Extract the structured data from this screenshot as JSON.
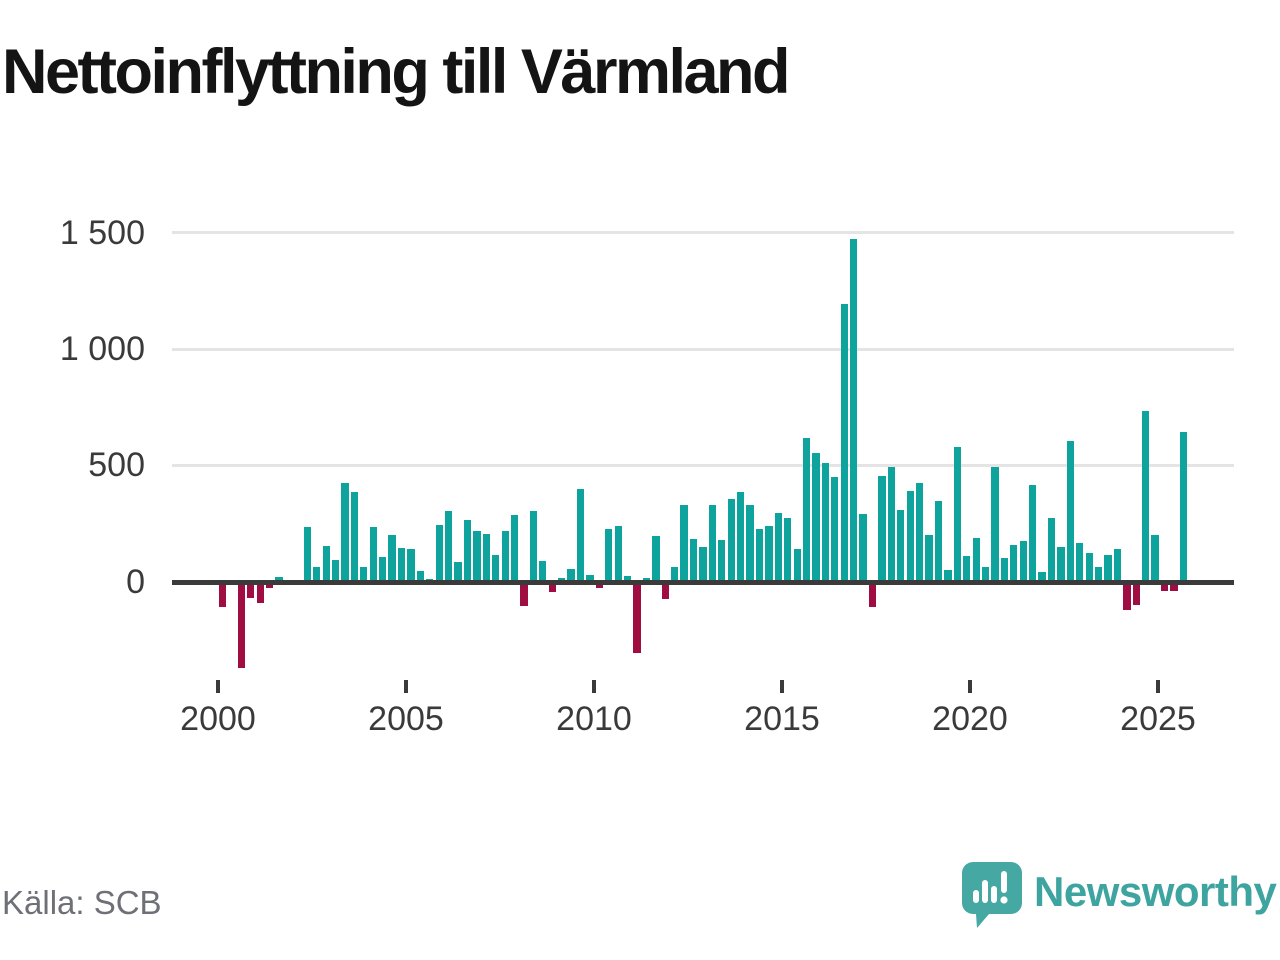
{
  "title": "Nettoinflyttning till Värmland",
  "source": "Källa: SCB",
  "branding": {
    "logo_text": "Newsworthy",
    "logo_icon": "bar-chart-speech-bubble-icon"
  },
  "colors": {
    "positive": "#0fa39e",
    "negative": "#9f0d43",
    "axis": "#3a3a3a",
    "grid": "#e4e4e4",
    "tick_label": "#3a3a3a",
    "source_text": "#6f6f78",
    "brand_teal": "#3da49f",
    "title_text": "#141414"
  },
  "chart_data": {
    "type": "bar",
    "title": "Nettoinflyttning till Värmland",
    "xlabel": "",
    "ylabel": "",
    "ylim": [
      -400,
      1500
    ],
    "grid": true,
    "legend": false,
    "ytick_values": [
      0,
      500,
      1000,
      1500
    ],
    "ytick_labels": [
      "0",
      "500",
      "1 000",
      "1 500"
    ],
    "xtick_years": [
      "2000",
      "2005",
      "2010",
      "2015",
      "2020",
      "2025"
    ],
    "categories": [
      "2000 Q1",
      "2000 Q2",
      "2000 Q3",
      "2000 Q4",
      "2001 Q1",
      "2001 Q2",
      "2001 Q3",
      "2001 Q4",
      "2002 Q1",
      "2002 Q2",
      "2002 Q3",
      "2002 Q4",
      "2003 Q1",
      "2003 Q2",
      "2003 Q3",
      "2003 Q4",
      "2004 Q1",
      "2004 Q2",
      "2004 Q3",
      "2004 Q4",
      "2005 Q1",
      "2005 Q2",
      "2005 Q3",
      "2005 Q4",
      "2006 Q1",
      "2006 Q2",
      "2006 Q3",
      "2006 Q4",
      "2007 Q1",
      "2007 Q2",
      "2007 Q3",
      "2007 Q4",
      "2008 Q1",
      "2008 Q2",
      "2008 Q3",
      "2008 Q4",
      "2009 Q1",
      "2009 Q2",
      "2009 Q3",
      "2009 Q4",
      "2010 Q1",
      "2010 Q2",
      "2010 Q3",
      "2010 Q4",
      "2011 Q1",
      "2011 Q2",
      "2011 Q3",
      "2011 Q4",
      "2012 Q1",
      "2012 Q2",
      "2012 Q3",
      "2012 Q4",
      "2013 Q1",
      "2013 Q2",
      "2013 Q3",
      "2013 Q4",
      "2014 Q1",
      "2014 Q2",
      "2014 Q3",
      "2014 Q4",
      "2015 Q1",
      "2015 Q2",
      "2015 Q3",
      "2015 Q4",
      "2016 Q1",
      "2016 Q2",
      "2016 Q3",
      "2016 Q4",
      "2017 Q1",
      "2017 Q2",
      "2017 Q3",
      "2017 Q4",
      "2018 Q1",
      "2018 Q2",
      "2018 Q3",
      "2018 Q4",
      "2019 Q1",
      "2019 Q2",
      "2019 Q3",
      "2019 Q4",
      "2020 Q1",
      "2020 Q2",
      "2020 Q3",
      "2020 Q4",
      "2021 Q1",
      "2021 Q2",
      "2021 Q3",
      "2021 Q4",
      "2022 Q1",
      "2022 Q2",
      "2022 Q3",
      "2022 Q4",
      "2023 Q1",
      "2023 Q2",
      "2023 Q3",
      "2023 Q4",
      "2024 Q1",
      "2024 Q2",
      "2024 Q3",
      "2024 Q4",
      "2025 Q1",
      "2025 Q2",
      "2025 Q3"
    ],
    "values": [
      -110,
      0,
      -370,
      -70,
      -90,
      -25,
      20,
      0,
      0,
      235,
      65,
      155,
      95,
      425,
      385,
      65,
      235,
      105,
      200,
      145,
      140,
      45,
      10,
      245,
      305,
      85,
      265,
      220,
      205,
      115,
      220,
      285,
      -105,
      305,
      90,
      -45,
      15,
      55,
      400,
      30,
      -25,
      225,
      240,
      25,
      -305,
      15,
      195,
      -75,
      65,
      330,
      185,
      150,
      330,
      180,
      355,
      385,
      330,
      225,
      240,
      295,
      275,
      140,
      620,
      555,
      510,
      450,
      1195,
      1475,
      290,
      -110,
      455,
      495,
      310,
      390,
      425,
      200,
      345,
      50,
      580,
      110,
      190,
      65,
      495,
      100,
      160,
      175,
      415,
      40,
      275,
      150,
      605,
      165,
      125,
      65,
      115,
      140,
      -120,
      -100,
      735,
      200,
      -40,
      -40,
      645
    ]
  }
}
